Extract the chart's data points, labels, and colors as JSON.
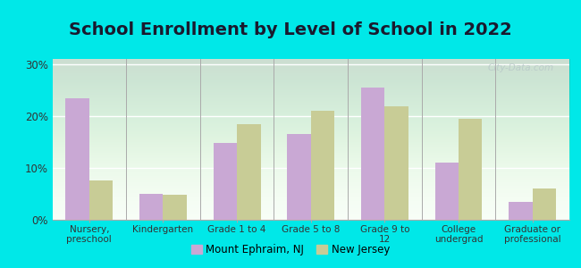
{
  "title": "School Enrollment by Level of School in 2022",
  "categories": [
    "Nursery,\npreschool",
    "Kindergarten",
    "Grade 1 to 4",
    "Grade 5 to 8",
    "Grade 9 to\n12",
    "College\nundergrad",
    "Graduate or\nprofessional"
  ],
  "mount_ephraim": [
    23.5,
    5.0,
    14.8,
    16.5,
    25.5,
    11.0,
    3.5
  ],
  "new_jersey": [
    7.5,
    4.8,
    18.5,
    21.0,
    21.8,
    19.5,
    6.0
  ],
  "bar_color_me": "#c9a8d4",
  "bar_color_nj": "#c8cc96",
  "background_outer": "#00e8e8",
  "background_inner_top": "#e8f0e0",
  "background_inner_bottom": "#f8fff8",
  "ylim": [
    0,
    31
  ],
  "yticks": [
    0,
    10,
    20,
    30
  ],
  "ytick_labels": [
    "0%",
    "10%",
    "20%",
    "30%"
  ],
  "legend_me": "Mount Ephraim, NJ",
  "legend_nj": "New Jersey",
  "title_fontsize": 14,
  "watermark": "City-Data.com"
}
